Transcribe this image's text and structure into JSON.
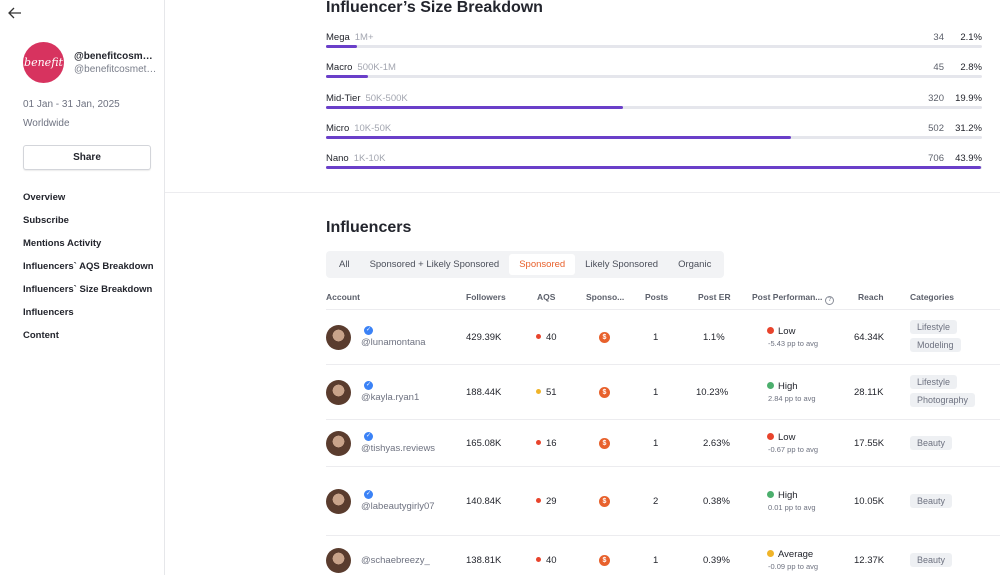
{
  "sidebar": {
    "brand_logo_text": "benefit",
    "handle_main": "@benefitcosmetics",
    "handle_sub": "@benefitcosmetics",
    "date_range": "01 Jan - 31 Jan, 2025",
    "region": "Worldwide",
    "share_label": "Share",
    "nav": [
      "Overview",
      "Subscribe",
      "Mentions Activity",
      "Influencers` AQS Breakdown",
      "Influencers` Size Breakdown",
      "Influencers",
      "Content"
    ]
  },
  "size_breakdown": {
    "title": "Influencer’s Size Breakdown",
    "tiers": [
      {
        "name": "Mega",
        "range": "1M+",
        "count": "34",
        "pct": "2.1%",
        "fill": 0.021
      },
      {
        "name": "Macro",
        "range": "500K-1M",
        "count": "45",
        "pct": "2.8%",
        "fill": 0.028
      },
      {
        "name": "Mid-Tier",
        "range": "50K-500K",
        "count": "320",
        "pct": "19.9%",
        "fill": 0.199
      },
      {
        "name": "Micro",
        "range": "10K-50K",
        "count": "502",
        "pct": "31.2%",
        "fill": 0.312
      },
      {
        "name": "Nano",
        "range": "1K-10K",
        "count": "706",
        "pct": "43.9%",
        "fill": 0.439
      }
    ],
    "fill_color": "#6a3fc9"
  },
  "influencers": {
    "title": "Influencers",
    "tabs": [
      "All",
      "Sponsored + Likely Sponsored",
      "Sponsored",
      "Likely Sponsored",
      "Organic"
    ],
    "active_tab": "Sponsored",
    "columns": {
      "account": "Account",
      "followers": "Followers",
      "aqs": "AQS",
      "sponsored": "Sponso...",
      "posts": "Posts",
      "post_er": "Post ER",
      "post_perf": "Post Performan...",
      "reach": "Reach",
      "categories": "Categories"
    },
    "rows": [
      {
        "handle": "@lunamontana",
        "verified": true,
        "followers": "429.39K",
        "aqs": "40",
        "aqs_color": "#e8442c",
        "posts": "1",
        "er": "1.1%",
        "perf": "Low",
        "perf_color": "#e8442c",
        "perf_sub": "-5.43 pp to avg",
        "reach": "64.34K",
        "categories": [
          "Lifestyle",
          "Modeling"
        ]
      },
      {
        "handle": "@kayla.ryan1",
        "verified": true,
        "followers": "188.44K",
        "aqs": "51",
        "aqs_color": "#f0b429",
        "posts": "1",
        "er": "10.23%",
        "perf": "High",
        "perf_color": "#4caf6d",
        "perf_sub": "2.84 pp to avg",
        "reach": "28.11K",
        "categories": [
          "Lifestyle",
          "Photography"
        ]
      },
      {
        "handle": "@tishyas.reviews",
        "verified": true,
        "followers": "165.08K",
        "aqs": "16",
        "aqs_color": "#e8442c",
        "posts": "1",
        "er": "2.63%",
        "perf": "Low",
        "perf_color": "#e8442c",
        "perf_sub": "-0.67 pp to avg",
        "reach": "17.55K",
        "categories": [
          "Beauty"
        ]
      },
      {
        "handle": "@labeautygirly07",
        "verified": true,
        "followers": "140.84K",
        "aqs": "29",
        "aqs_color": "#e8442c",
        "posts": "2",
        "er": "0.38%",
        "perf": "High",
        "perf_color": "#4caf6d",
        "perf_sub": "0.01 pp to avg",
        "reach": "10.05K",
        "categories": [
          "Beauty"
        ]
      },
      {
        "handle": "@schaebreezy_",
        "verified": false,
        "followers": "138.81K",
        "aqs": "40",
        "aqs_color": "#e8442c",
        "posts": "1",
        "er": "0.39%",
        "perf": "Average",
        "perf_color": "#f0b429",
        "perf_sub": "-0.09 pp to avg",
        "reach": "12.37K",
        "categories": [
          "Beauty"
        ]
      }
    ]
  }
}
